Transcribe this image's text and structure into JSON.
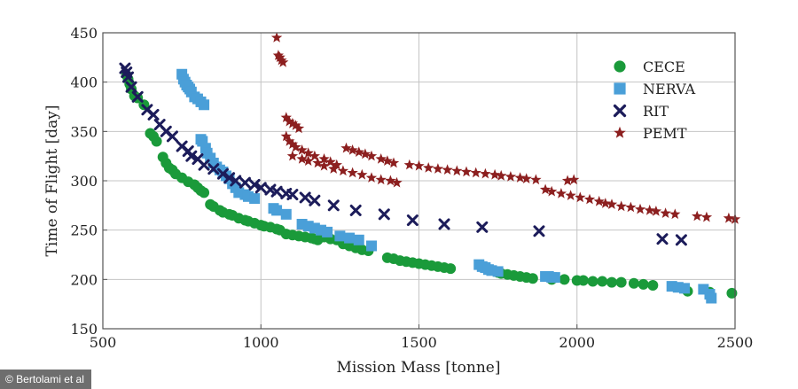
{
  "credit": "© Bertolami et al",
  "chart_data": {
    "type": "scatter",
    "title": "",
    "xlabel": "Mission Mass [tonne]",
    "ylabel": "Time of Flight [day]",
    "xlim": [
      500,
      2500
    ],
    "ylim": [
      150,
      450
    ],
    "xticks": [
      500,
      1000,
      1500,
      2000,
      2500
    ],
    "yticks": [
      150,
      200,
      250,
      300,
      350,
      400,
      450
    ],
    "grid": true,
    "legend_position": "top-right",
    "series": [
      {
        "name": "CECE",
        "marker": "circle",
        "color": "#1a9a3a",
        "points": [
          [
            575,
            407
          ],
          [
            580,
            403
          ],
          [
            585,
            398
          ],
          [
            590,
            393
          ],
          [
            600,
            386
          ],
          [
            610,
            384
          ],
          [
            630,
            377
          ],
          [
            650,
            348
          ],
          [
            660,
            345
          ],
          [
            670,
            340
          ],
          [
            690,
            324
          ],
          [
            700,
            318
          ],
          [
            710,
            313
          ],
          [
            720,
            311
          ],
          [
            730,
            307
          ],
          [
            750,
            303
          ],
          [
            770,
            299
          ],
          [
            790,
            296
          ],
          [
            800,
            293
          ],
          [
            810,
            290
          ],
          [
            820,
            288
          ],
          [
            840,
            276
          ],
          [
            850,
            274
          ],
          [
            870,
            270
          ],
          [
            880,
            268
          ],
          [
            900,
            266
          ],
          [
            910,
            265
          ],
          [
            930,
            262
          ],
          [
            950,
            260
          ],
          [
            960,
            259
          ],
          [
            980,
            257
          ],
          [
            1000,
            255
          ],
          [
            1010,
            254
          ],
          [
            1030,
            253
          ],
          [
            1050,
            251
          ],
          [
            1060,
            250
          ],
          [
            1080,
            246
          ],
          [
            1100,
            245
          ],
          [
            1120,
            244
          ],
          [
            1140,
            243
          ],
          [
            1160,
            242
          ],
          [
            1170,
            241
          ],
          [
            1180,
            240
          ],
          [
            1200,
            243
          ],
          [
            1220,
            241
          ],
          [
            1240,
            240
          ],
          [
            1260,
            236
          ],
          [
            1280,
            234
          ],
          [
            1300,
            232
          ],
          [
            1320,
            230
          ],
          [
            1340,
            229
          ],
          [
            1400,
            222
          ],
          [
            1420,
            221
          ],
          [
            1440,
            219
          ],
          [
            1460,
            218
          ],
          [
            1480,
            217
          ],
          [
            1500,
            216
          ],
          [
            1520,
            215
          ],
          [
            1540,
            214
          ],
          [
            1560,
            213
          ],
          [
            1580,
            212
          ],
          [
            1600,
            211
          ],
          [
            1750,
            207
          ],
          [
            1760,
            206
          ],
          [
            1780,
            205
          ],
          [
            1800,
            204
          ],
          [
            1820,
            203
          ],
          [
            1840,
            202
          ],
          [
            1860,
            201
          ],
          [
            1920,
            200
          ],
          [
            1960,
            200
          ],
          [
            2000,
            199
          ],
          [
            2020,
            199
          ],
          [
            2050,
            198
          ],
          [
            2080,
            198
          ],
          [
            2110,
            197
          ],
          [
            2140,
            197
          ],
          [
            2180,
            196
          ],
          [
            2210,
            195
          ],
          [
            2240,
            194
          ],
          [
            2350,
            188
          ],
          [
            2420,
            187
          ],
          [
            2490,
            186
          ]
        ]
      },
      {
        "name": "NERVA",
        "marker": "square",
        "color": "#4a9fd8",
        "points": [
          [
            750,
            408
          ],
          [
            755,
            403
          ],
          [
            760,
            400
          ],
          [
            765,
            397
          ],
          [
            770,
            395
          ],
          [
            775,
            393
          ],
          [
            780,
            390
          ],
          [
            790,
            385
          ],
          [
            800,
            383
          ],
          [
            810,
            380
          ],
          [
            820,
            377
          ],
          [
            810,
            342
          ],
          [
            815,
            340
          ],
          [
            825,
            333
          ],
          [
            830,
            328
          ],
          [
            840,
            323
          ],
          [
            850,
            318
          ],
          [
            860,
            314
          ],
          [
            870,
            311
          ],
          [
            880,
            309
          ],
          [
            890,
            305
          ],
          [
            900,
            302
          ],
          [
            910,
            297
          ],
          [
            920,
            293
          ],
          [
            930,
            288
          ],
          [
            950,
            286
          ],
          [
            960,
            284
          ],
          [
            980,
            282
          ],
          [
            1040,
            272
          ],
          [
            1050,
            270
          ],
          [
            1080,
            266
          ],
          [
            1130,
            256
          ],
          [
            1150,
            254
          ],
          [
            1170,
            252
          ],
          [
            1190,
            250
          ],
          [
            1210,
            248
          ],
          [
            1250,
            244
          ],
          [
            1280,
            242
          ],
          [
            1310,
            240
          ],
          [
            1350,
            234
          ],
          [
            1690,
            215
          ],
          [
            1700,
            213
          ],
          [
            1710,
            212
          ],
          [
            1720,
            210
          ],
          [
            1730,
            209
          ],
          [
            1750,
            208
          ],
          [
            1900,
            203
          ],
          [
            1910,
            203
          ],
          [
            1920,
            202
          ],
          [
            1930,
            202
          ],
          [
            2300,
            193
          ],
          [
            2320,
            192
          ],
          [
            2340,
            191
          ],
          [
            2400,
            190
          ],
          [
            2420,
            185
          ],
          [
            2425,
            181
          ]
        ]
      },
      {
        "name": "RIT",
        "marker": "x",
        "color": "#1c1c5a",
        "points": [
          [
            570,
            414
          ],
          [
            575,
            410
          ],
          [
            580,
            405
          ],
          [
            590,
            395
          ],
          [
            610,
            385
          ],
          [
            640,
            372
          ],
          [
            660,
            367
          ],
          [
            680,
            357
          ],
          [
            700,
            350
          ],
          [
            720,
            345
          ],
          [
            750,
            335
          ],
          [
            770,
            330
          ],
          [
            780,
            325
          ],
          [
            800,
            322
          ],
          [
            820,
            316
          ],
          [
            850,
            312
          ],
          [
            880,
            307
          ],
          [
            900,
            303
          ],
          [
            920,
            300
          ],
          [
            950,
            298
          ],
          [
            980,
            296
          ],
          [
            1000,
            293
          ],
          [
            1030,
            291
          ],
          [
            1050,
            289
          ],
          [
            1080,
            287
          ],
          [
            1100,
            286
          ],
          [
            1140,
            283
          ],
          [
            1170,
            280
          ],
          [
            1230,
            275
          ],
          [
            1300,
            270
          ],
          [
            1390,
            266
          ],
          [
            1480,
            260
          ],
          [
            1580,
            256
          ],
          [
            1700,
            253
          ],
          [
            1880,
            249
          ],
          [
            2270,
            241
          ],
          [
            2330,
            240
          ]
        ]
      },
      {
        "name": "PEMT",
        "marker": "star",
        "color": "#8c1f1f",
        "points": [
          [
            1050,
            445
          ],
          [
            1055,
            427
          ],
          [
            1060,
            425
          ],
          [
            1065,
            422
          ],
          [
            1070,
            420
          ],
          [
            1080,
            364
          ],
          [
            1090,
            360
          ],
          [
            1100,
            358
          ],
          [
            1110,
            356
          ],
          [
            1120,
            353
          ],
          [
            1080,
            345
          ],
          [
            1090,
            340
          ],
          [
            1100,
            337
          ],
          [
            1110,
            334
          ],
          [
            1130,
            331
          ],
          [
            1150,
            328
          ],
          [
            1170,
            325
          ],
          [
            1200,
            322
          ],
          [
            1220,
            319
          ],
          [
            1240,
            316
          ],
          [
            1100,
            325
          ],
          [
            1130,
            322
          ],
          [
            1150,
            320
          ],
          [
            1180,
            318
          ],
          [
            1200,
            315
          ],
          [
            1230,
            312
          ],
          [
            1260,
            310
          ],
          [
            1290,
            308
          ],
          [
            1320,
            306
          ],
          [
            1350,
            303
          ],
          [
            1380,
            301
          ],
          [
            1410,
            300
          ],
          [
            1430,
            298
          ],
          [
            1270,
            333
          ],
          [
            1290,
            331
          ],
          [
            1310,
            329
          ],
          [
            1330,
            327
          ],
          [
            1350,
            325
          ],
          [
            1380,
            322
          ],
          [
            1400,
            320
          ],
          [
            1420,
            318
          ],
          [
            1470,
            316
          ],
          [
            1500,
            315
          ],
          [
            1530,
            313
          ],
          [
            1560,
            312
          ],
          [
            1590,
            311
          ],
          [
            1620,
            310
          ],
          [
            1650,
            309
          ],
          [
            1680,
            308
          ],
          [
            1710,
            307
          ],
          [
            1740,
            306
          ],
          [
            1760,
            305
          ],
          [
            1790,
            304
          ],
          [
            1820,
            303
          ],
          [
            1840,
            302
          ],
          [
            1870,
            301
          ],
          [
            1970,
            300
          ],
          [
            1990,
            301
          ],
          [
            1900,
            291
          ],
          [
            1920,
            289
          ],
          [
            1950,
            287
          ],
          [
            1980,
            285
          ],
          [
            2010,
            283
          ],
          [
            2040,
            281
          ],
          [
            2070,
            279
          ],
          [
            2090,
            277
          ],
          [
            2110,
            276
          ],
          [
            2140,
            274
          ],
          [
            2170,
            273
          ],
          [
            2200,
            271
          ],
          [
            2230,
            270
          ],
          [
            2250,
            269
          ],
          [
            2280,
            267
          ],
          [
            2310,
            266
          ],
          [
            2380,
            264
          ],
          [
            2410,
            263
          ],
          [
            2480,
            262
          ],
          [
            2500,
            261
          ]
        ]
      }
    ]
  }
}
